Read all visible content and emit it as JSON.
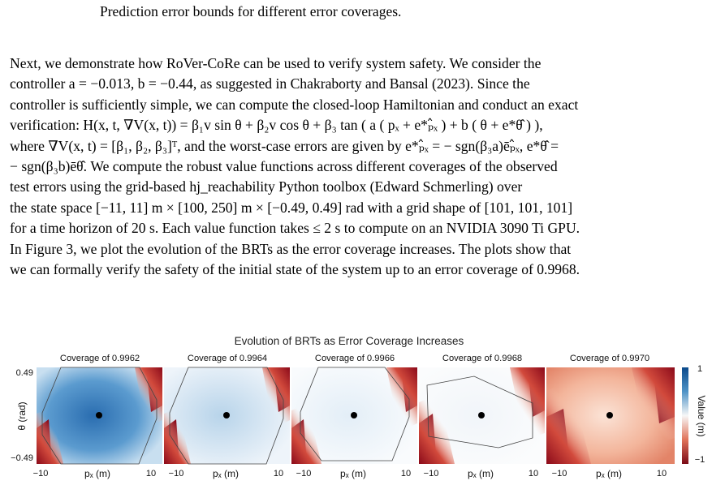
{
  "caption_tail": "Prediction error bounds for different error coverages.",
  "paragraph_lines": [
    "Next, we demonstrate how RoVer-CoRe can be used to verify system safety. We consider the",
    "controller a = −0.013, b = −0.44, as suggested in Chakraborty and Bansal (2023). Since the",
    "controller is sufficiently simple, we can compute the closed-loop Hamiltonian and conduct an exact",
    "verification: H(x, t, ∇V(x, t)) = β₁v sin θ + β₂v cos θ + β₃ tan ( a ( pₓ + e*ₚ̂ₓ ) + b ( θ + e*θ̂ ) ),",
    "where ∇V(x, t) = [β₁, β₂, β₃]ᵀ, and the worst-case errors are given by e*ₚ̂ₓ = − sgn(β₃a)ēₚ̂ₓ, e*θ̂ =",
    "− sgn(β₃b)ēθ̂. We compute the robust value functions across different coverages of the observed",
    "test errors using the grid-based hj_reachability Python toolbox (Edward Schmerling) over",
    "the state space [−11, 11] m × [100, 250] m × [−0.49, 0.49] rad with a grid shape of [101, 101, 101]",
    "for a time horizon of 20 s. Each value function takes ≤ 2 s to compute on an NVIDIA 3090 Ti GPU.",
    "In Figure 3, we plot the evolution of the BRTs as the error coverage increases. The plots show that",
    "we can formally verify the safety of the initial state of the system up to an error coverage of 0.9968."
  ],
  "figure": {
    "title": "Evolution of BRTs as Error Coverage Increases",
    "panel_titles": [
      "Coverage of 0.9962",
      "Coverage of 0.9964",
      "Coverage of 0.9966",
      "Coverage of 0.9968",
      "Coverage of 0.9970"
    ],
    "y_ticks": [
      "0.49",
      "−0.49"
    ],
    "y_label": "θ (rad)",
    "x_ticks": [
      "−10",
      "10"
    ],
    "x_label": "pₓ (m)",
    "colorbar_label": "Value (m)",
    "colorbar_ticks": [
      "1",
      "−1"
    ],
    "colors": {
      "negative": "#8b0a1a",
      "zero": "#f7f7f7",
      "positive": "#1f66a8"
    }
  }
}
